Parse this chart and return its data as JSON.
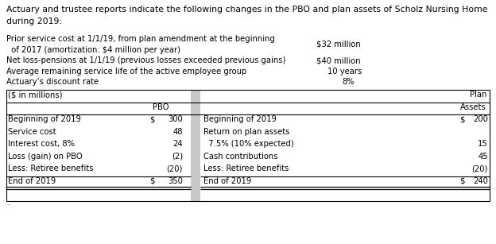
{
  "title_line1": "Actuary and trustee reports indicate the following changes in the PBO and plan assets of Scholz Nursing Home",
  "title_line2": "during 2019:",
  "intro_line1a": "Prior service cost at 1/1/19, from plan amendment at the beginning",
  "intro_line1b": "  of 2017 (amortization: $4 million per year)",
  "intro_val1": "$32 million",
  "intro_line2": "Net loss-pensions at 1/1/19 (previous losses exceeded previous gains)",
  "intro_val2": "$40 million",
  "intro_line3": "Average remaining service life of the active employee group",
  "intro_val3": "10 years",
  "intro_line4": "Actuary’s discount rate",
  "intro_val4": "8%",
  "hdr1_left": "($ in millions)",
  "hdr1_right": "Plan",
  "hdr2_left": "PBO",
  "hdr2_right": "Assets",
  "left_labels": [
    "Beginning of 2019",
    "Service cost",
    "Interest cost, 8%",
    "Loss (gain) on PBO",
    "Less: Retiree benefits",
    "End of 2019"
  ],
  "left_dollars": [
    "$",
    "",
    "",
    "",
    "",
    "$"
  ],
  "left_values": [
    "300",
    "48",
    "24",
    "(2)",
    "(20)",
    "350"
  ],
  "right_labels": [
    "Beginning of 2019",
    "Return on plan assets",
    "  7.5% (10% expected)",
    "Cash contributions",
    "Less: Retiree benefits",
    "End of 2019"
  ],
  "right_dollars": [
    "$",
    "",
    "",
    "",
    "",
    "$"
  ],
  "right_values": [
    "200",
    "",
    "15",
    "45",
    "(20)",
    "240"
  ],
  "bg_color": "#ffffff",
  "text_color": "#000000",
  "gray_color": "#c8c8c8",
  "font_size": 7.2,
  "title_font_size": 7.8
}
